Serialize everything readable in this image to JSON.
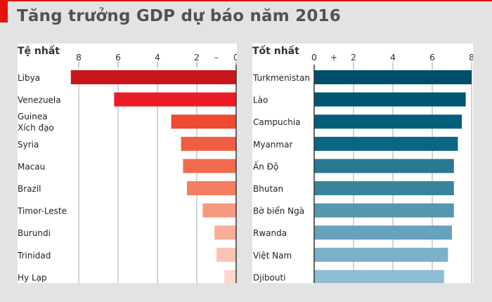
{
  "title": "Tăng trưởng GDP dự báo năm 2016",
  "chart_data": [
    {
      "type": "bar",
      "orientation": "horizontal",
      "title": "Tệ nhất",
      "direction": "negative (bars extend left from 0)",
      "xlim": [
        0,
        8
      ],
      "ticks": [
        "8",
        "6",
        "4",
        "2",
        "0"
      ],
      "sign_marker": "–",
      "grid": true,
      "categories": [
        "Libya",
        "Venezuela",
        "Guinea\nXích đạo",
        "Syria",
        "Macau",
        "Brazil",
        "Timor-Leste",
        "Burundi",
        "Trinidad",
        "Hy Lạp"
      ],
      "values": [
        -8.4,
        -6.2,
        -3.3,
        -2.8,
        -2.7,
        -2.5,
        -1.7,
        -1.1,
        -1.0,
        -0.6
      ],
      "colors": [
        "#c8161d",
        "#ec1c24",
        "#ef4a32",
        "#f15d42",
        "#f26b4f",
        "#f47e62",
        "#f69a7f",
        "#f8ae97",
        "#fac3b1",
        "#fcd7ca"
      ]
    },
    {
      "type": "bar",
      "orientation": "horizontal",
      "title": "Tốt nhất",
      "direction": "positive",
      "xlim": [
        0,
        8
      ],
      "ticks": [
        "0",
        "2",
        "4",
        "6",
        "8"
      ],
      "sign_marker": "+",
      "grid": true,
      "categories": [
        "Turkmenistan",
        "Lào",
        "Campuchia",
        "Myanmar",
        "Ấn Độ",
        "Bhutan",
        "Bờ biển Ngà",
        "Rwanda",
        "Việt Nam",
        "Djibouti"
      ],
      "values": [
        8.0,
        7.7,
        7.5,
        7.3,
        7.1,
        7.1,
        7.1,
        7.0,
        6.8,
        6.6
      ],
      "colors": [
        "#004e6c",
        "#015672",
        "#035e7c",
        "#0b6683",
        "#2a7892",
        "#3a839c",
        "#5597b1",
        "#66a2bd",
        "#7bb0c9",
        "#8fbdd3"
      ]
    }
  ]
}
